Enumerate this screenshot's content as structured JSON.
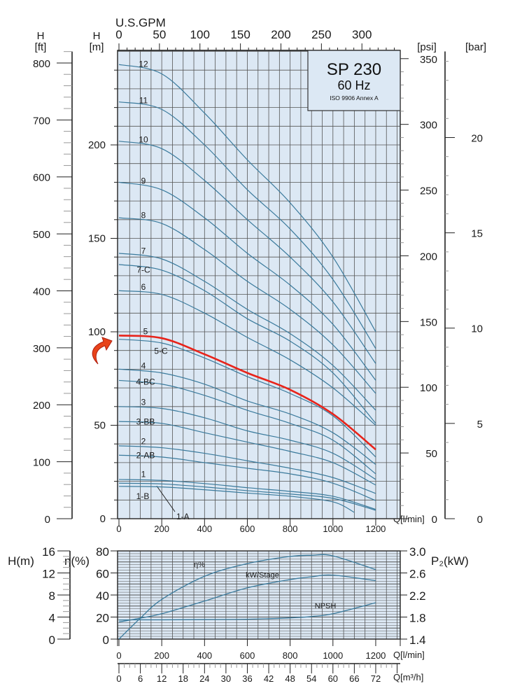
{
  "chart_data": [
    {
      "type": "line",
      "title": "SP 230",
      "subtitle": "60 Hz",
      "note": "ISO 9906 Annex A",
      "xlabel": "Q[l/min]",
      "x_top_label": "U.S.GPM",
      "ylabel_m": [
        "H",
        "[m]"
      ],
      "ylabel_ft": [
        "H",
        "[ft]"
      ],
      "ylabel_psi": "[psi]",
      "ylabel_bar": "[bar]",
      "xlim": [
        0,
        1300
      ],
      "ylim": [
        0,
        250
      ],
      "grid": true,
      "x_ticks": [
        "0",
        "200",
        "400",
        "600",
        "800",
        "1000",
        "1200"
      ],
      "gpm_ticks": [
        "0",
        "50",
        "100",
        "150",
        "200",
        "250",
        "300"
      ],
      "m_ticks": [
        "0",
        "50",
        "100",
        "150",
        "200"
      ],
      "ft_ticks": [
        "0",
        "100",
        "200",
        "300",
        "400",
        "500",
        "600",
        "700",
        "800"
      ],
      "psi_ticks": [
        "0",
        "50",
        "100",
        "150",
        "200",
        "250",
        "300",
        "350"
      ],
      "bar_ticks": [
        "0",
        "5",
        "10",
        "15",
        "20"
      ],
      "highlight_series": "5",
      "highlight_color": "#e8231a",
      "line_color": "#3a7a9c",
      "plot_bg": "#dce8f4",
      "x": [
        0,
        200,
        400,
        600,
        800,
        1000,
        1200
      ],
      "series": [
        {
          "name": "12",
          "values": [
            243,
            238,
            217,
            192,
            169,
            140,
            100
          ]
        },
        {
          "name": "11",
          "values": [
            223,
            219,
            200,
            176,
            155,
            128,
            91
          ]
        },
        {
          "name": "10",
          "values": [
            202,
            198,
            181,
            160,
            140,
            116,
            83
          ]
        },
        {
          "name": "9",
          "values": [
            180,
            176,
            161,
            142,
            125,
            104,
            74
          ]
        },
        {
          "name": "8",
          "values": [
            161,
            158,
            144,
            127,
            112,
            93,
            67
          ]
        },
        {
          "name": "7",
          "values": [
            142,
            139,
            127,
            112,
            99,
            82,
            58
          ]
        },
        {
          "name": "7-C",
          "values": [
            136,
            133,
            122,
            107,
            95,
            78,
            51
          ]
        },
        {
          "name": "6",
          "values": [
            122,
            120,
            110,
            97,
            85,
            70,
            50
          ]
        },
        {
          "name": "5",
          "values": [
            98,
            96.6,
            88,
            78,
            69,
            56,
            37
          ]
        },
        {
          "name": "5-C",
          "values": [
            96,
            94,
            86,
            76,
            67,
            55,
            33
          ]
        },
        {
          "name": "4",
          "values": [
            80,
            78,
            72,
            63,
            56,
            46,
            29
          ]
        },
        {
          "name": "4-BC",
          "values": [
            74,
            72,
            66,
            58,
            51,
            42,
            24
          ]
        },
        {
          "name": "3",
          "values": [
            60,
            59,
            54,
            47,
            42,
            35,
            21
          ]
        },
        {
          "name": "3-BB",
          "values": [
            52,
            51,
            46,
            41,
            36,
            30,
            18
          ]
        },
        {
          "name": "2",
          "values": [
            39,
            38,
            35,
            31,
            27,
            22,
            13.5
          ]
        },
        {
          "name": "2-AB",
          "values": [
            34,
            33,
            30,
            27,
            24,
            19,
            9.7
          ]
        },
        {
          "name": "1",
          "values": [
            21,
            20.5,
            18.8,
            16.6,
            14.6,
            12,
            5
          ]
        },
        {
          "name": "1-A",
          "values": [
            19,
            18.6,
            17,
            15,
            13.2,
            10.9,
            4.5
          ]
        },
        {
          "name": "1-B",
          "x": [
            0,
            200,
            400,
            600,
            800,
            1000,
            1100
          ],
          "values": [
            17.3,
            17,
            15.5,
            13.7,
            12,
            9,
            3.4
          ]
        }
      ]
    },
    {
      "type": "line",
      "xlabel": "Q[l/min]",
      "xlabel2": "Q[m³/h]",
      "ylabel_h": "H(m)",
      "ylabel_eta": "η(%)",
      "ylabel_p2": "P₂(kW)",
      "xlim": [
        0,
        1300
      ],
      "grid": true,
      "x_ticks": [
        "0",
        "200",
        "400",
        "600",
        "800",
        "1000",
        "1200"
      ],
      "m3h_ticks": [
        "0",
        "6",
        "12",
        "18",
        "24",
        "30",
        "36",
        "42",
        "48",
        "54",
        "60",
        "66",
        "72"
      ],
      "h_ticks": [
        "0",
        "4",
        "8",
        "12",
        "16"
      ],
      "eta_ticks": [
        "0",
        "20",
        "40",
        "60",
        "80"
      ],
      "p2_ticks": [
        "1.4",
        "1.8",
        "2.2",
        "2.6",
        "3.0"
      ],
      "x": [
        0,
        100,
        200,
        400,
        600,
        800,
        900,
        1000,
        1200
      ],
      "series": [
        {
          "name": "η%",
          "axis": "eta",
          "values": [
            0,
            19,
            36,
            57,
            68.5,
            75,
            76,
            75.5,
            63
          ]
        },
        {
          "name": "kW/Stage",
          "axis": "p2",
          "values": [
            1.71,
            1.78,
            1.86,
            2.09,
            2.33,
            2.48,
            2.53,
            2.56,
            2.46
          ]
        },
        {
          "name": "NPSH",
          "axis": "h",
          "values": [
            3.47,
            3.5,
            3.5,
            3.55,
            3.6,
            3.85,
            4.1,
            4.6,
            6.6
          ]
        }
      ]
    }
  ]
}
